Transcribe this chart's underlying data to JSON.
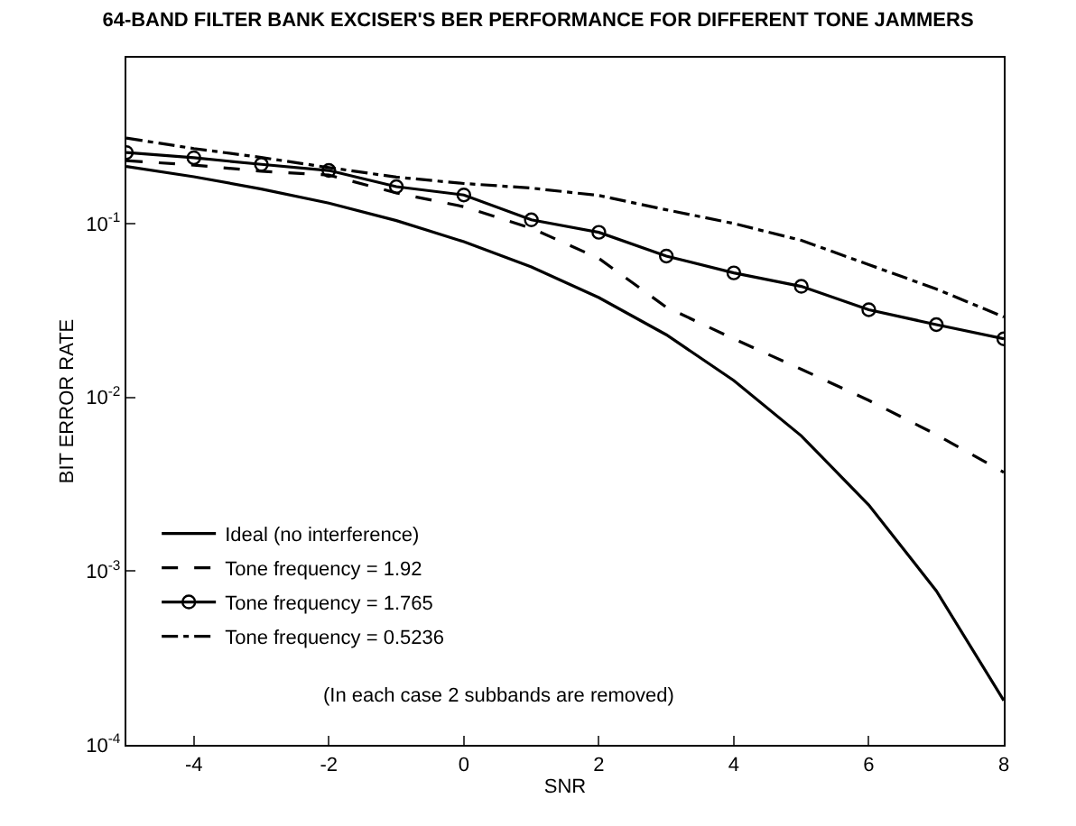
{
  "chart_data": {
    "type": "line",
    "title": "64-BAND FILTER BANK EXCISER'S BER PERFORMANCE FOR DIFFERENT TONE JAMMERS",
    "xlabel": "SNR",
    "ylabel": "BIT ERROR RATE",
    "x": [
      -5,
      -4,
      -3,
      -2,
      -1,
      0,
      1,
      2,
      3,
      4,
      5,
      6,
      7,
      8
    ],
    "series": [
      {
        "name": "Ideal (no interference)",
        "color": "#000000",
        "line_style": "solid",
        "marker": "none",
        "values": [
          0.213,
          0.186,
          0.158,
          0.131,
          0.104,
          0.0786,
          0.0563,
          0.0375,
          0.0229,
          0.0125,
          0.006,
          0.0024,
          0.00077,
          0.00018
        ]
      },
      {
        "name": "Tone frequency = 1.92",
        "color": "#000000",
        "line_style": "dashed",
        "marker": "none",
        "values": [
          0.23,
          0.217,
          0.2,
          0.19,
          0.15,
          0.125,
          0.094,
          0.063,
          0.033,
          0.0217,
          0.0145,
          0.0096,
          0.0061,
          0.0037
        ]
      },
      {
        "name": "Tone frequency = 1.765",
        "color": "#000000",
        "line_style": "solid",
        "marker": "circle",
        "values": [
          0.256,
          0.239,
          0.219,
          0.202,
          0.163,
          0.146,
          0.105,
          0.089,
          0.065,
          0.052,
          0.0435,
          0.0319,
          0.0262,
          0.0217
        ]
      },
      {
        "name": "Tone frequency = 0.5236",
        "color": "#000000",
        "line_style": "dashdot",
        "marker": "none",
        "values": [
          0.31,
          0.27,
          0.24,
          0.21,
          0.185,
          0.17,
          0.16,
          0.145,
          0.12,
          0.1,
          0.08,
          0.058,
          0.042,
          0.029
        ]
      }
    ],
    "annotations": [
      "(In each case 2 subbands are removed)"
    ],
    "xlim": [
      -5,
      8
    ],
    "xticks": [
      -4,
      -2,
      0,
      2,
      4,
      6,
      8
    ],
    "ylim": [
      0.0001,
      0.9
    ],
    "log": "y",
    "yticks": [
      {
        "value": 0.0001,
        "label": "10$^{-4}$"
      },
      {
        "value": 0.001,
        "label": "10$^{-3}$"
      },
      {
        "value": 0.01,
        "label": "10$^{-2}$"
      },
      {
        "value": 0.1,
        "label": "10$^{-1}$"
      }
    ],
    "legend": "bottom left"
  }
}
